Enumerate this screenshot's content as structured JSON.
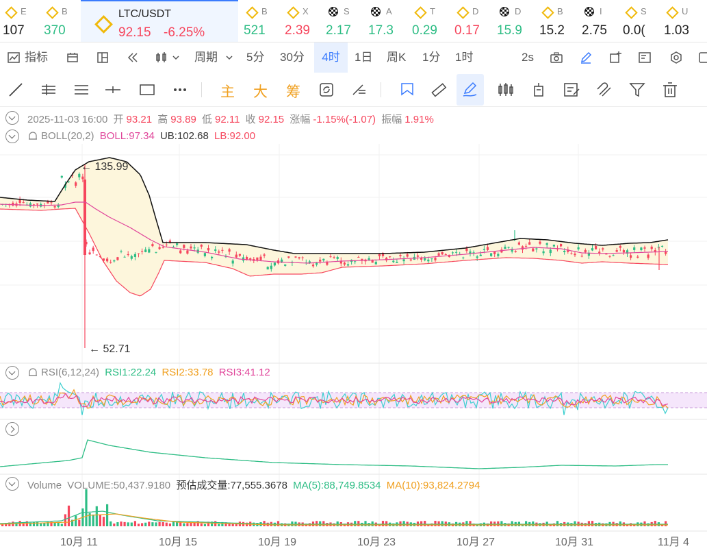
{
  "ticker": {
    "items": [
      {
        "name": "E",
        "value": "107",
        "trend": "neu",
        "icon": "bnb-icon"
      },
      {
        "name": "B",
        "value": "370",
        "trend": "up",
        "icon": "bnb-icon"
      }
    ],
    "active": {
      "symbol": "LTC/USDT",
      "price": "92.15",
      "change": "-6.25%",
      "icon": "bnb-icon"
    },
    "right_items": [
      {
        "name": "B",
        "value": "521",
        "trend": "up",
        "icon": "bnb-icon"
      },
      {
        "name": "X",
        "value": "2.39",
        "trend": "dn",
        "icon": "bnb-icon"
      },
      {
        "name": "S",
        "value": "2.17",
        "trend": "up",
        "icon": "checker-icon"
      },
      {
        "name": "A",
        "value": "17.3",
        "trend": "up",
        "icon": "checker-icon"
      },
      {
        "name": "T",
        "value": "0.29",
        "trend": "up",
        "icon": "bnb-icon"
      },
      {
        "name": "D",
        "value": "0.17",
        "trend": "dn",
        "icon": "bnb-icon"
      },
      {
        "name": "D",
        "value": "15.9",
        "trend": "up",
        "icon": "checker-icon"
      },
      {
        "name": "B",
        "value": "15.2",
        "trend": "neu",
        "icon": "bnb-icon"
      },
      {
        "name": "I",
        "value": "2.75",
        "trend": "neu",
        "icon": "checker-icon"
      },
      {
        "name": "S",
        "value": "0.0(",
        "trend": "neu",
        "icon": "bnb-icon"
      },
      {
        "name": "U",
        "value": "1.03",
        "trend": "neu",
        "icon": "bnb-icon"
      }
    ]
  },
  "toolbar": {
    "indicators": "指标",
    "period": "周期",
    "intervals": [
      "5分",
      "30分",
      "4时",
      "1日",
      "周K",
      "1分",
      "1时"
    ],
    "active_interval": "4时",
    "refresh": "2s"
  },
  "drawbar": {
    "main": "主",
    "big": "大",
    "chip": "筹"
  },
  "ohlc": {
    "date": "2025-11-03 16:00",
    "open_label": "开",
    "open": "93.21",
    "high_label": "高",
    "high": "93.89",
    "low_label": "低",
    "low": "92.11",
    "close_label": "收",
    "close": "92.15",
    "chg_label": "涨幅",
    "chg": "-1.15%(-1.07)",
    "amp_label": "振幅",
    "amp": "1.91%"
  },
  "boll": {
    "name": "BOLL(20,2)",
    "boll": "BOLL:97.34",
    "ub": "UB:102.68",
    "lb": "LB:92.00"
  },
  "rsi": {
    "name": "RSI(6,12,24)",
    "rsi1": "RSI1:22.24",
    "rsi2": "RSI2:33.78",
    "rsi3": "RSI3:41.12"
  },
  "volume": {
    "name": "Volume",
    "vol": "VOLUME:50,437.9180",
    "est_label": "预估成交量:",
    "est": "77,555.3678",
    "ma5": "MA(5):88,749.8534",
    "ma10": "MA(10):93,824.2794"
  },
  "price_labels": {
    "high": "135.99",
    "low": "52.71"
  },
  "xaxis": [
    "10月 11",
    "10月 15",
    "10月 19",
    "10月 23",
    "10月 27",
    "10月 31",
    "11月 4"
  ],
  "colors": {
    "up": "#2ebd85",
    "down": "#f6465d",
    "accent": "#3a7bfd",
    "boll_mid": "#e0459a",
    "boll_fill": "#fdf6dc",
    "rsi1": "#3ccfcf",
    "rsi2": "#f0a020",
    "rsi3": "#e0459a"
  }
}
